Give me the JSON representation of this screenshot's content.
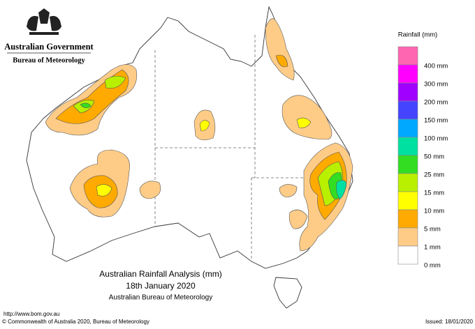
{
  "header": {
    "government": "Australian Government",
    "bureau": "Bureau of Meteorology"
  },
  "legend": {
    "title": "Rainfall (mm)",
    "colors": [
      "#ff66b2",
      "#ff00ff",
      "#a000ff",
      "#4444ff",
      "#00a8ff",
      "#00e0a0",
      "#33dd22",
      "#b8f000",
      "#ffff00",
      "#ffaa00",
      "#ffcc88",
      "#ffffff"
    ],
    "labels": [
      "400 mm",
      "300 mm",
      "200 mm",
      "150 mm",
      "100 mm",
      "50 mm",
      "25 mm",
      "15 mm",
      "10 mm",
      "5 mm",
      "1 mm",
      "0 mm"
    ]
  },
  "caption": {
    "title": "Australian Rainfall Analysis (mm)",
    "date": "18th January 2020",
    "source": "Australian Bureau of Meteorology"
  },
  "footer": {
    "url": "http://www.bom.gov.au",
    "copyright": "© Commonwealth of Australia 2020, Bureau of Meteorology",
    "issued": "Issued: 18/01/2020"
  }
}
